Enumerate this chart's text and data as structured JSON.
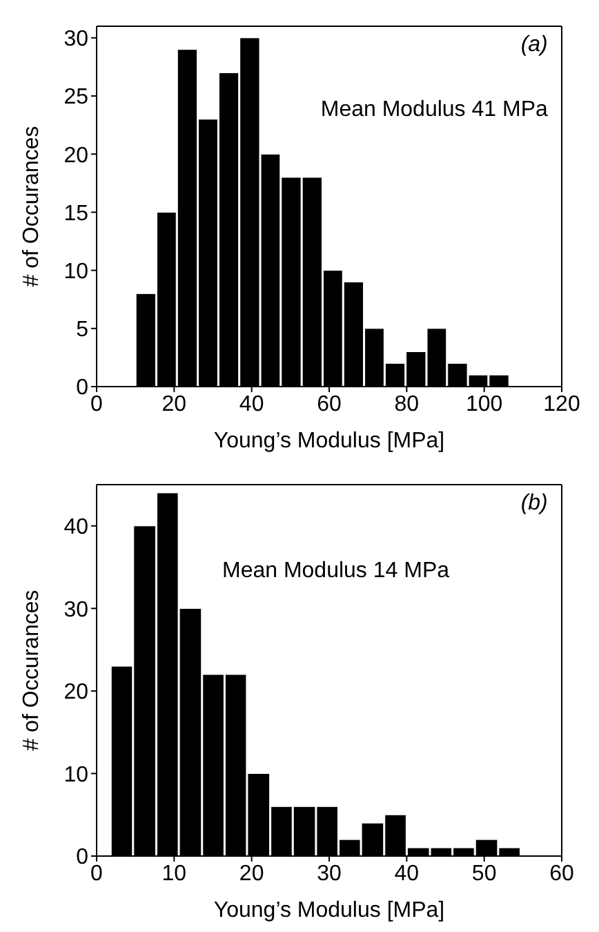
{
  "chart_data": [
    {
      "type": "histogram",
      "xlabel": "Young’s Modulus [MPa]",
      "ylabel": "# of Occurances",
      "annotations": [
        "(a)",
        "Mean Modulus 41 MPa"
      ],
      "color": "#000000",
      "bins": [
        10,
        15.4,
        20.7,
        26.1,
        31.4,
        36.8,
        42.2,
        47.5,
        52.9,
        58.3,
        63.6,
        69,
        74.3,
        79.7,
        85.1,
        90.4,
        95.8,
        101.1,
        106.5
      ],
      "values": [
        8,
        15,
        29,
        23,
        27,
        30,
        20,
        18,
        18,
        10,
        9,
        5,
        2,
        3,
        5,
        2,
        1,
        1
      ],
      "xlim": [
        0,
        120
      ],
      "xticks": [
        0,
        20,
        40,
        60,
        80,
        100,
        120
      ],
      "ylim": [
        0,
        31
      ],
      "yticks": [
        0,
        5,
        10,
        15,
        20,
        25,
        30
      ]
    },
    {
      "type": "histogram",
      "xlabel": "Young’s Modulus [MPa]",
      "ylabel": "# of Occurances",
      "annotations": [
        "(b)",
        "Mean Modulus 14 MPa"
      ],
      "color": "#000000",
      "bins": [
        1.8,
        4.7,
        7.7,
        10.6,
        13.6,
        16.5,
        19.4,
        22.4,
        25.3,
        28.3,
        31.2,
        34.1,
        37.1,
        40,
        43,
        45.9,
        48.8,
        51.8,
        54.7
      ],
      "values": [
        23,
        40,
        44,
        30,
        22,
        22,
        10,
        6,
        6,
        6,
        2,
        4,
        5,
        1,
        1,
        1,
        2,
        1
      ],
      "xlim": [
        0,
        60
      ],
      "xticks": [
        0,
        10,
        20,
        30,
        40,
        50,
        60
      ],
      "ylim": [
        0,
        45
      ],
      "yticks": [
        0,
        10,
        20,
        30,
        40
      ]
    }
  ]
}
